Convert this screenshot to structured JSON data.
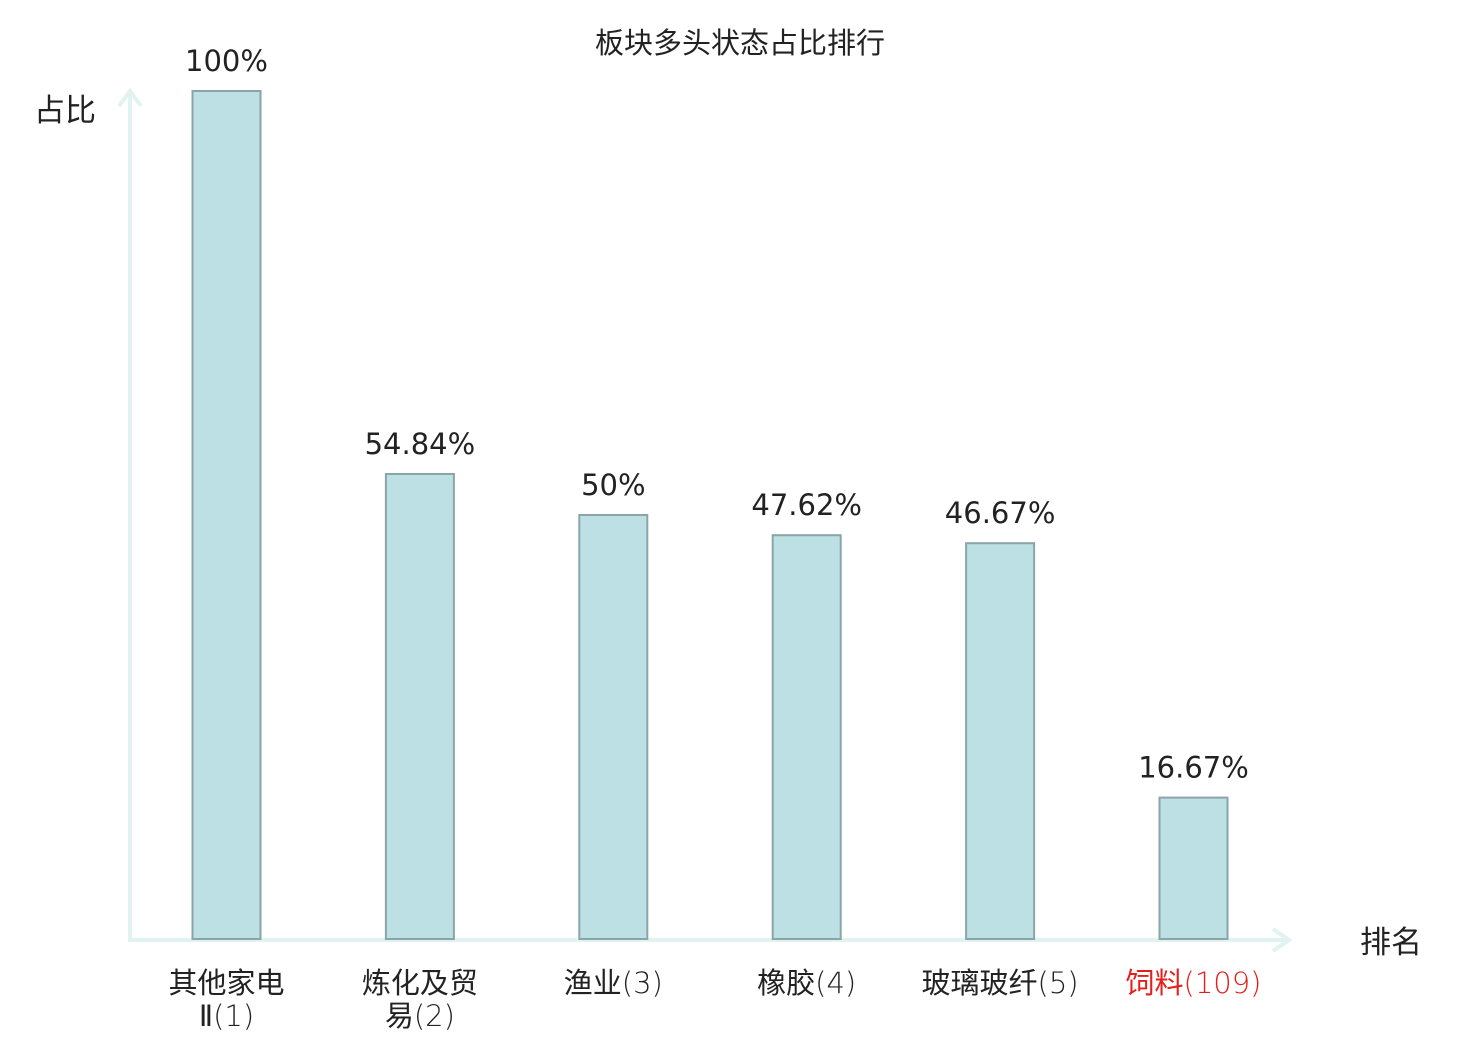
{
  "chart_data": {
    "type": "bar",
    "title": "板块多头状态占比排行",
    "ylabel": "占比",
    "xlabel": "排名",
    "ylim": [
      0,
      100
    ],
    "grid": false,
    "legend": "none",
    "categories": [
      {
        "name_lines": [
          "其他家电",
          "Ⅱ"
        ],
        "rank": "(1)",
        "highlight": false
      },
      {
        "name_lines": [
          "炼化及贸",
          "易"
        ],
        "rank": "(2)",
        "highlight": false
      },
      {
        "name_lines": [
          "渔业"
        ],
        "rank": "(3)",
        "highlight": false
      },
      {
        "name_lines": [
          "橡胶"
        ],
        "rank": "(4)",
        "highlight": false
      },
      {
        "name_lines": [
          "玻璃玻纤"
        ],
        "rank": "(5)",
        "highlight": false
      },
      {
        "name_lines": [
          "饲料"
        ],
        "rank": "(109)",
        "highlight": true
      }
    ],
    "values": [
      100,
      54.84,
      50,
      47.62,
      46.67,
      16.67
    ],
    "value_labels": [
      "100%",
      "54.84%",
      "50%",
      "47.62%",
      "46.67%",
      "16.67%"
    ]
  },
  "colors": {
    "bar_fill": "#bce0e3",
    "bar_stroke": "#8aa5a8",
    "axis": "#e0f3f0",
    "text": "#222222",
    "highlight": "#e3201b"
  }
}
